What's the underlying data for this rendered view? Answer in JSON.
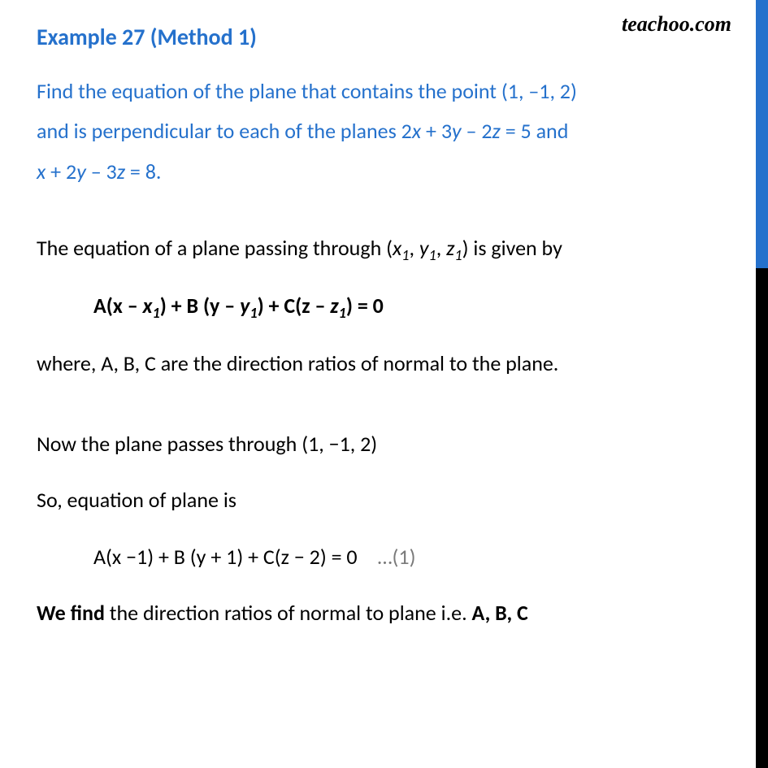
{
  "brand": "teachoo.com",
  "title": "Example 27 (Method 1)",
  "problem": {
    "line1_a": "Find the equation of the plane that contains the point (1, ",
    "line1_b": "1, 2)",
    "line2_a": "and is perpendicular to each of the planes 2",
    "line2_var1": "x",
    "line2_b": " ",
    "line2_plus": "+",
    "line2_c": " 3",
    "line2_var2": "y",
    "line2_d": " ",
    "line2_minus": "–",
    "line2_e": " 2",
    "line2_var3": "z",
    "line2_f": " = 5 and",
    "line3_var1": "x",
    "line3_a": " ",
    "line3_plus": "+",
    "line3_b": " 2",
    "line3_var2": "y",
    "line3_c": " ",
    "line3_minus": "–",
    "line3_d": " 3",
    "line3_var3": "z",
    "line3_e": " = 8."
  },
  "solution": {
    "intro_a": "The equation of a plane passing through (",
    "intro_x": "x",
    "intro_comma1": ", ",
    "intro_y": "y",
    "intro_comma2": ", ",
    "intro_z": "z",
    "intro_b": ") is given by",
    "formula_a": "A(x ",
    "formula_minus1": "–",
    "formula_b": " ",
    "formula_x1": "x",
    "formula_c": ") + B (y ",
    "formula_minus2": "–",
    "formula_d": " ",
    "formula_y1": "y",
    "formula_e": ")  + C(z ",
    "formula_minus3": "–",
    "formula_f": " ",
    "formula_z1": "z",
    "formula_g": ") = 0",
    "where": "where,  A, B, C   are  the direction ratios of normal to the plane.",
    "passes": "Now the plane passes through (1, −1, 2)",
    "so_eq": "So, equation of plane is",
    "eq1": "A(x −1) + B (y + 1) + C(z − 2) = 0",
    "eq1_note": "…(1)",
    "find_a": "We find",
    "find_b": " the direction ratios of normal to plane i.e. ",
    "find_c": "A,  B, C"
  },
  "sub1": "1",
  "minus_sign": "–"
}
